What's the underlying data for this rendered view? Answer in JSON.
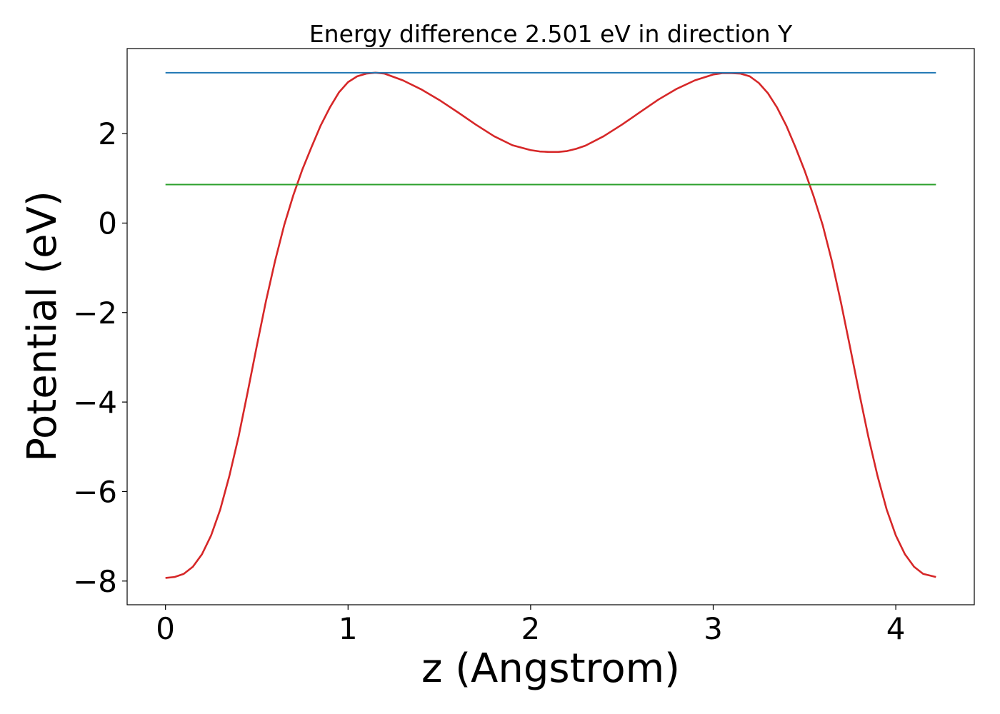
{
  "chart_data": {
    "type": "line",
    "title": "Energy difference 2.501 eV in direction Y",
    "xlabel": "z (Angstrom)",
    "ylabel": "Potential (eV)",
    "xlim": [
      -0.21,
      4.43
    ],
    "ylim": [
      -8.53,
      3.9
    ],
    "x_ticks": [
      0,
      1,
      2,
      3,
      4
    ],
    "x_tick_labels": [
      "0",
      "1",
      "2",
      "3",
      "4"
    ],
    "y_ticks": [
      -8,
      -6,
      -4,
      -2,
      0,
      2
    ],
    "y_tick_labels": [
      "−8",
      "−6",
      "−4",
      "−2",
      "0",
      "2"
    ],
    "grid": false,
    "series": [
      {
        "color": "#d62728",
        "x": [
          0.0,
          0.05,
          0.1,
          0.15,
          0.2,
          0.25,
          0.3,
          0.35,
          0.4,
          0.45,
          0.5,
          0.55,
          0.6,
          0.65,
          0.7,
          0.75,
          0.8,
          0.85,
          0.9,
          0.95,
          1.0,
          1.05,
          1.1,
          1.15,
          1.2,
          1.3,
          1.4,
          1.5,
          1.6,
          1.7,
          1.8,
          1.9,
          2.0,
          2.05,
          2.1,
          2.15,
          2.2,
          2.25,
          2.3,
          2.4,
          2.5,
          2.6,
          2.7,
          2.8,
          2.9,
          3.0,
          3.05,
          3.1,
          3.15,
          3.2,
          3.25,
          3.3,
          3.35,
          3.4,
          3.45,
          3.5,
          3.55,
          3.6,
          3.65,
          3.7,
          3.75,
          3.8,
          3.85,
          3.9,
          3.95,
          4.0,
          4.05,
          4.1,
          4.15,
          4.22
        ],
        "values": [
          -7.93,
          -7.91,
          -7.84,
          -7.68,
          -7.4,
          -6.98,
          -6.4,
          -5.65,
          -4.78,
          -3.78,
          -2.75,
          -1.75,
          -0.85,
          -0.05,
          0.62,
          1.2,
          1.7,
          2.18,
          2.58,
          2.92,
          3.15,
          3.28,
          3.34,
          3.36,
          3.34,
          3.19,
          2.99,
          2.75,
          2.48,
          2.2,
          1.94,
          1.74,
          1.63,
          1.6,
          1.59,
          1.59,
          1.61,
          1.66,
          1.73,
          1.94,
          2.2,
          2.48,
          2.76,
          3.0,
          3.19,
          3.32,
          3.35,
          3.35,
          3.34,
          3.28,
          3.13,
          2.9,
          2.58,
          2.18,
          1.7,
          1.18,
          0.6,
          -0.05,
          -0.85,
          -1.78,
          -2.78,
          -3.8,
          -4.78,
          -5.65,
          -6.4,
          -6.98,
          -7.4,
          -7.68,
          -7.84,
          -7.91
        ]
      },
      {
        "color": "#1f77b4",
        "x": [
          0.0,
          4.22
        ],
        "values": [
          3.36,
          3.36
        ]
      },
      {
        "color": "#2ca02c",
        "x": [
          0.0,
          4.22
        ],
        "values": [
          0.86,
          0.86
        ]
      }
    ]
  }
}
